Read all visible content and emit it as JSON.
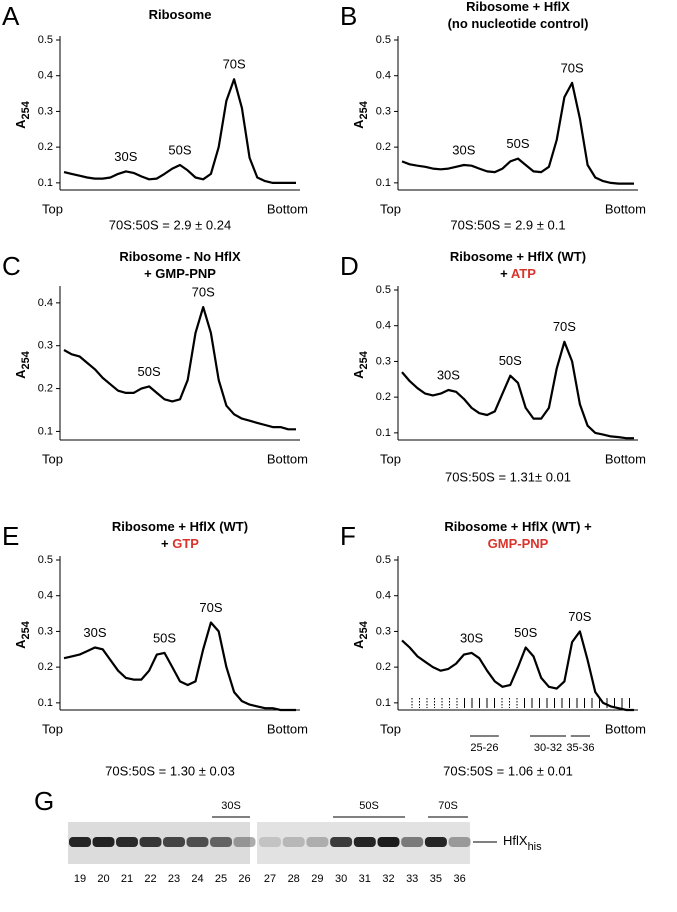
{
  "chart_data": [
    {
      "type": "line",
      "panel": "A",
      "title": [
        [
          {
            "text": "Ribosome"
          }
        ]
      ],
      "ylabel": "A",
      "ylabel_sub": "254",
      "x_start_label": "Top",
      "x_end_label": "Bottom",
      "note": "70S:50S = 2.9 ± 0.24",
      "peak_labels": [
        "30S",
        "50S",
        "70S"
      ],
      "color": "#000000",
      "ylim": [
        0.08,
        0.5
      ],
      "yticks": [
        0.1,
        0.2,
        0.3,
        0.4,
        0.5
      ],
      "values": [
        0.13,
        0.125,
        0.12,
        0.115,
        0.112,
        0.112,
        0.115,
        0.125,
        0.132,
        0.128,
        0.118,
        0.11,
        0.112,
        0.125,
        0.14,
        0.15,
        0.135,
        0.115,
        0.11,
        0.125,
        0.2,
        0.33,
        0.39,
        0.31,
        0.17,
        0.115,
        0.105,
        0.1,
        0.1,
        0.1,
        0.1
      ]
    },
    {
      "type": "line",
      "panel": "B",
      "title": [
        [
          {
            "text": "Ribosome + HflX"
          }
        ],
        [
          {
            "text": "(no nucleotide control)"
          }
        ]
      ],
      "ylabel": "A",
      "ylabel_sub": "254",
      "x_start_label": "Top",
      "x_end_label": "Bottom",
      "note": "70S:50S = 2.9 ± 0.1",
      "peak_labels": [
        "30S",
        "50S",
        "70S"
      ],
      "color": "#000000",
      "ylim": [
        0.08,
        0.5
      ],
      "yticks": [
        0.1,
        0.2,
        0.3,
        0.4,
        0.5
      ],
      "values": [
        0.16,
        0.152,
        0.148,
        0.145,
        0.14,
        0.138,
        0.14,
        0.145,
        0.15,
        0.148,
        0.14,
        0.132,
        0.13,
        0.14,
        0.16,
        0.168,
        0.15,
        0.132,
        0.13,
        0.145,
        0.22,
        0.34,
        0.38,
        0.28,
        0.15,
        0.115,
        0.105,
        0.1,
        0.098,
        0.098,
        0.098
      ]
    },
    {
      "type": "line",
      "panel": "C",
      "title": [
        [
          {
            "text": "Ribosome - No HflX"
          }
        ],
        [
          {
            "text": "+ GMP-PNP"
          }
        ]
      ],
      "ylabel": "A",
      "ylabel_sub": "254",
      "x_start_label": "Top",
      "x_end_label": "Bottom",
      "peak_labels": [
        "50S",
        "70S"
      ],
      "color": "#000000",
      "ylim": [
        0.08,
        0.43
      ],
      "yticks": [
        0.1,
        0.2,
        0.3,
        0.4
      ],
      "values": [
        0.29,
        0.28,
        0.275,
        0.26,
        0.245,
        0.225,
        0.21,
        0.195,
        0.19,
        0.19,
        0.2,
        0.205,
        0.19,
        0.175,
        0.17,
        0.175,
        0.22,
        0.33,
        0.39,
        0.33,
        0.22,
        0.16,
        0.14,
        0.13,
        0.125,
        0.12,
        0.115,
        0.11,
        0.11,
        0.105,
        0.105
      ]
    },
    {
      "type": "line",
      "panel": "D",
      "title": [
        [
          {
            "text": "Ribosome + HflX (WT)"
          }
        ],
        [
          {
            "text": "+ "
          },
          {
            "text": "ATP",
            "color": "#d9342b"
          }
        ]
      ],
      "ylabel": "A",
      "ylabel_sub": "254",
      "x_start_label": "Top",
      "x_end_label": "Bottom",
      "note": "70S:50S = 1.31± 0.01",
      "peak_labels": [
        "30S",
        "50S",
        "70S"
      ],
      "color": "#000000",
      "ylim": [
        0.08,
        0.5
      ],
      "yticks": [
        0.1,
        0.2,
        0.3,
        0.4,
        0.5
      ],
      "values": [
        0.27,
        0.245,
        0.225,
        0.21,
        0.205,
        0.21,
        0.22,
        0.215,
        0.195,
        0.17,
        0.155,
        0.15,
        0.16,
        0.21,
        0.26,
        0.24,
        0.17,
        0.14,
        0.14,
        0.17,
        0.28,
        0.355,
        0.3,
        0.18,
        0.12,
        0.1,
        0.095,
        0.09,
        0.088,
        0.085,
        0.085
      ]
    },
    {
      "type": "line",
      "panel": "E",
      "title": [
        [
          {
            "text": "Ribosome + HflX (WT)"
          }
        ],
        [
          {
            "text": "+ "
          },
          {
            "text": "GTP",
            "color": "#d9342b"
          }
        ]
      ],
      "ylabel": "A",
      "ylabel_sub": "254",
      "x_start_label": "Top",
      "x_end_label": "Bottom",
      "note": "70S:50S = 1.30 ± 0.03",
      "peak_labels": [
        "30S",
        "50S",
        "70S"
      ],
      "color": "#000000",
      "ylim": [
        0.08,
        0.5
      ],
      "yticks": [
        0.1,
        0.2,
        0.3,
        0.4,
        0.5
      ],
      "values": [
        0.225,
        0.23,
        0.235,
        0.245,
        0.255,
        0.25,
        0.22,
        0.19,
        0.17,
        0.165,
        0.165,
        0.19,
        0.235,
        0.24,
        0.2,
        0.16,
        0.15,
        0.16,
        0.25,
        0.325,
        0.3,
        0.2,
        0.13,
        0.105,
        0.095,
        0.09,
        0.085,
        0.085,
        0.08,
        0.08,
        0.08
      ]
    },
    {
      "type": "line",
      "panel": "F",
      "title": [
        [
          {
            "text": "Ribosome + HflX (WT) +"
          }
        ],
        [
          {
            "text": "GMP-PNP",
            "color": "#d9342b"
          }
        ]
      ],
      "ylabel": "A",
      "ylabel_sub": "254",
      "x_start_label": "Top",
      "x_end_label": "Bottom",
      "note": "70S:50S = 1.06 ± 0.01",
      "peak_labels": [
        "30S",
        "50S",
        "70S"
      ],
      "fraction_labels": [
        "25-26",
        "30-32",
        "35-36"
      ],
      "color": "#000000",
      "ylim": [
        0.08,
        0.5
      ],
      "yticks": [
        0.1,
        0.2,
        0.3,
        0.4,
        0.5
      ],
      "values": [
        0.275,
        0.255,
        0.23,
        0.215,
        0.2,
        0.19,
        0.195,
        0.21,
        0.235,
        0.24,
        0.225,
        0.19,
        0.16,
        0.145,
        0.15,
        0.2,
        0.255,
        0.23,
        0.17,
        0.145,
        0.14,
        0.16,
        0.27,
        0.3,
        0.22,
        0.13,
        0.1,
        0.09,
        0.085,
        0.08,
        0.08
      ]
    }
  ],
  "gel": {
    "panel": "G",
    "lanes": [
      "19",
      "20",
      "21",
      "22",
      "23",
      "24",
      "25",
      "26",
      "27",
      "28",
      "29",
      "30",
      "31",
      "32",
      "33",
      "35",
      "36"
    ],
    "region_labels": [
      "30S",
      "50S",
      "70S"
    ],
    "protein": "HflX",
    "protein_sub": "his"
  }
}
